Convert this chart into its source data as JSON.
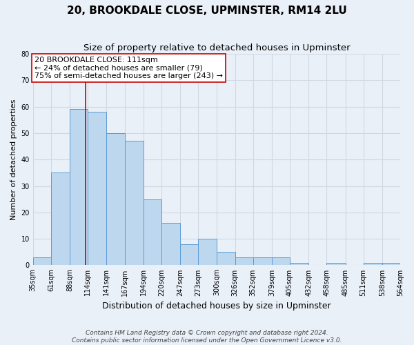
{
  "title": "20, BROOKDALE CLOSE, UPMINSTER, RM14 2LU",
  "subtitle": "Size of property relative to detached houses in Upminster",
  "xlabel": "Distribution of detached houses by size in Upminster",
  "ylabel": "Number of detached properties",
  "bar_edges": [
    35,
    61,
    88,
    114,
    141,
    167,
    194,
    220,
    247,
    273,
    300,
    326,
    352,
    379,
    405,
    432,
    458,
    485,
    511,
    538,
    564
  ],
  "bar_heights": [
    3,
    35,
    59,
    58,
    50,
    47,
    25,
    16,
    8,
    10,
    5,
    3,
    3,
    3,
    1,
    0,
    1,
    0,
    1,
    1
  ],
  "bar_color": "#bdd7ee",
  "bar_edge_color": "#5b9bd5",
  "property_line_x": 111,
  "property_line_color": "#cc0000",
  "annotation_line1": "20 BROOKDALE CLOSE: 111sqm",
  "annotation_line2": "← 24% of detached houses are smaller (79)",
  "annotation_line3": "75% of semi-detached houses are larger (243) →",
  "annotation_box_color": "#ffffff",
  "annotation_box_edge_color": "#cc0000",
  "ylim": [
    0,
    80
  ],
  "yticks": [
    0,
    10,
    20,
    30,
    40,
    50,
    60,
    70,
    80
  ],
  "tick_labels": [
    "35sqm",
    "61sqm",
    "88sqm",
    "114sqm",
    "141sqm",
    "167sqm",
    "194sqm",
    "220sqm",
    "247sqm",
    "273sqm",
    "300sqm",
    "326sqm",
    "352sqm",
    "379sqm",
    "405sqm",
    "432sqm",
    "458sqm",
    "485sqm",
    "511sqm",
    "538sqm",
    "564sqm"
  ],
  "grid_color": "#d0d8e4",
  "bg_color": "#eaf0f8",
  "footnote": "Contains HM Land Registry data © Crown copyright and database right 2024.\nContains public sector information licensed under the Open Government Licence v3.0.",
  "title_fontsize": 11,
  "subtitle_fontsize": 9.5,
  "xlabel_fontsize": 9,
  "ylabel_fontsize": 8,
  "annotation_fontsize": 8,
  "tick_fontsize": 7,
  "footnote_fontsize": 6.5
}
